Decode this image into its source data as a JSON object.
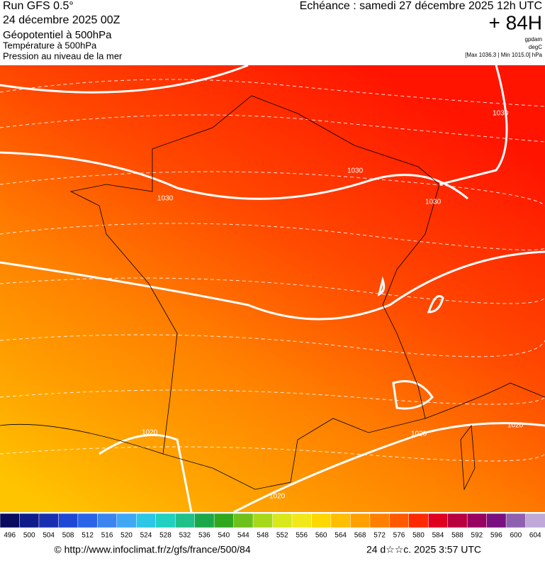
{
  "header": {
    "run": "Run GFS 0.5°",
    "date": "24 décembre 2025 00Z",
    "layer1": "Géopotentiel à 500hPa",
    "layer2": "Température à 500hPa",
    "layer3": "Pression au niveau de la mer",
    "valid": "Echéance : samedi 27 décembre 2025 12h UTC",
    "lead": "+ 84H",
    "unit1": "gpdam",
    "unit2": "degC",
    "range": "[Max 1036.3 | Min 1015.0] hPa"
  },
  "contour_labels": [
    "1030",
    "1030",
    "1030",
    "1030",
    "1020",
    "1020",
    "1020",
    "1020"
  ],
  "colorbar": {
    "values": [
      496,
      500,
      504,
      508,
      512,
      516,
      520,
      524,
      528,
      532,
      536,
      540,
      544,
      548,
      552,
      556,
      560,
      564,
      568,
      572,
      576,
      580,
      584,
      588,
      592,
      596,
      600,
      604
    ],
    "colors": [
      "#0a0a5e",
      "#0f1c8a",
      "#1a2fb0",
      "#1f47d6",
      "#2a64e8",
      "#3a85f0",
      "#3fa8f5",
      "#2cc6e6",
      "#20d0c0",
      "#1fc08a",
      "#1aa84a",
      "#2fa820",
      "#6ec01a",
      "#a8d81a",
      "#d8e81a",
      "#f0e81a",
      "#ffd800",
      "#ffbe00",
      "#ffa000",
      "#ff8000",
      "#ff5a00",
      "#ff2a00",
      "#e00020",
      "#b80040",
      "#980060",
      "#7a1080",
      "#9060b0",
      "#c0a8d8"
    ]
  },
  "footer": {
    "url": "© http://www.infoclimat.fr/z/gfs/france/500/84",
    "generated": "24 d☆☆c. 2025  3:57 UTC"
  }
}
